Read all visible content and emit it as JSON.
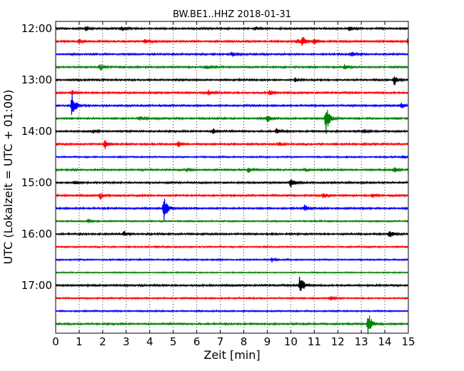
{
  "chart_data": {
    "type": "line",
    "title": "BW.BE1..HHZ 2018-01-31",
    "xlabel": "Zeit  [min]",
    "ylabel": "UTC (Lokalzeit = UTC + 01:00)",
    "xlim": [
      0,
      15
    ],
    "x_ticks": [
      "0",
      "1",
      "2",
      "3",
      "4",
      "5",
      "6",
      "7",
      "8",
      "9",
      "10",
      "11",
      "12",
      "13",
      "14",
      "15"
    ],
    "y_tick_labels": [
      "12:00",
      "13:00",
      "14:00",
      "15:00",
      "16:00",
      "17:00"
    ],
    "y_tick_rows": [
      0,
      4,
      8,
      12,
      16,
      20
    ],
    "grid": true,
    "row_colors": [
      "#000000",
      "#ff0000",
      "#0000ff",
      "#008000"
    ],
    "rows": [
      {
        "label_time": "12:00",
        "noise": 1.2,
        "events": [
          {
            "t": 1.3,
            "amp": 4
          },
          {
            "t": 2.8,
            "amp": 4
          },
          {
            "t": 8.5,
            "amp": 3
          },
          {
            "t": 12.5,
            "amp": 4
          }
        ]
      },
      {
        "label_time": "12:15",
        "noise": 1.2,
        "events": [
          {
            "t": 1.0,
            "amp": 4
          },
          {
            "t": 3.8,
            "amp": 4
          },
          {
            "t": 10.3,
            "amp": 3
          },
          {
            "t": 10.5,
            "amp": 7
          },
          {
            "t": 11.0,
            "amp": 4
          },
          {
            "t": 15.0,
            "amp": 6
          }
        ]
      },
      {
        "label_time": "12:30",
        "noise": 1.2,
        "events": [
          {
            "t": 7.5,
            "amp": 4
          },
          {
            "t": 12.6,
            "amp": 4
          }
        ]
      },
      {
        "label_time": "12:45",
        "noise": 1.2,
        "events": [
          {
            "t": 1.9,
            "amp": 5
          },
          {
            "t": 6.4,
            "amp": 3
          },
          {
            "t": 12.3,
            "amp": 4
          }
        ]
      },
      {
        "label_time": "13:00",
        "noise": 1.2,
        "events": [
          {
            "t": 10.2,
            "amp": 3
          },
          {
            "t": 14.4,
            "amp": 8
          }
        ]
      },
      {
        "label_time": "13:15",
        "noise": 1.2,
        "events": [
          {
            "t": 0.7,
            "amp": 4
          },
          {
            "t": 6.5,
            "amp": 4
          },
          {
            "t": 9.1,
            "amp": 4
          }
        ]
      },
      {
        "label_time": "13:30",
        "noise": 1.2,
        "events": [
          {
            "t": 0.7,
            "amp": 20
          },
          {
            "t": 14.7,
            "amp": 4
          }
        ]
      },
      {
        "label_time": "13:45",
        "noise": 1.2,
        "events": [
          {
            "t": 3.6,
            "amp": 3
          },
          {
            "t": 9.0,
            "amp": 6
          },
          {
            "t": 11.5,
            "amp": 24
          }
        ]
      },
      {
        "label_time": "14:00",
        "noise": 1.2,
        "events": [
          {
            "t": 1.6,
            "amp": 3
          },
          {
            "t": 6.7,
            "amp": 4
          },
          {
            "t": 9.4,
            "amp": 4
          },
          {
            "t": 13.1,
            "amp": 3
          }
        ]
      },
      {
        "label_time": "14:15",
        "noise": 1.2,
        "events": [
          {
            "t": 2.1,
            "amp": 7
          },
          {
            "t": 5.2,
            "amp": 5
          },
          {
            "t": 9.5,
            "amp": 3
          }
        ]
      },
      {
        "label_time": "14:30",
        "noise": 1.0,
        "events": [
          {
            "t": 14.8,
            "amp": 2
          }
        ]
      },
      {
        "label_time": "14:45",
        "noise": 1.2,
        "events": [
          {
            "t": 5.6,
            "amp": 3
          },
          {
            "t": 8.2,
            "amp": 4
          },
          {
            "t": 10.6,
            "amp": 3
          },
          {
            "t": 14.4,
            "amp": 4
          }
        ]
      },
      {
        "label_time": "15:00",
        "noise": 1.2,
        "events": [
          {
            "t": 0.8,
            "amp": 4
          },
          {
            "t": 10.0,
            "amp": 7
          }
        ]
      },
      {
        "label_time": "15:15",
        "noise": 1.2,
        "events": [
          {
            "t": 1.9,
            "amp": 5
          },
          {
            "t": 11.4,
            "amp": 4
          },
          {
            "t": 13.5,
            "amp": 3
          }
        ]
      },
      {
        "label_time": "15:30",
        "noise": 1.2,
        "events": [
          {
            "t": 4.6,
            "amp": 20
          },
          {
            "t": 10.6,
            "amp": 5
          }
        ]
      },
      {
        "label_time": "15:45",
        "noise": 1.0,
        "events": [
          {
            "t": 1.4,
            "amp": 3
          }
        ]
      },
      {
        "label_time": "16:00",
        "noise": 1.2,
        "events": [
          {
            "t": 2.9,
            "amp": 4
          },
          {
            "t": 14.2,
            "amp": 7
          }
        ]
      },
      {
        "label_time": "16:15",
        "noise": 1.0,
        "events": []
      },
      {
        "label_time": "16:30",
        "noise": 1.0,
        "events": [
          {
            "t": 9.2,
            "amp": 3
          }
        ]
      },
      {
        "label_time": "16:45",
        "noise": 0.8,
        "events": []
      },
      {
        "label_time": "17:00",
        "noise": 1.2,
        "events": [
          {
            "t": 10.4,
            "amp": 18
          }
        ]
      },
      {
        "label_time": "17:15",
        "noise": 1.0,
        "events": [
          {
            "t": 11.7,
            "amp": 3
          }
        ]
      },
      {
        "label_time": "17:30",
        "noise": 1.0,
        "events": []
      },
      {
        "label_time": "17:45",
        "noise": 1.2,
        "events": [
          {
            "t": 13.3,
            "amp": 18
          }
        ]
      }
    ]
  }
}
